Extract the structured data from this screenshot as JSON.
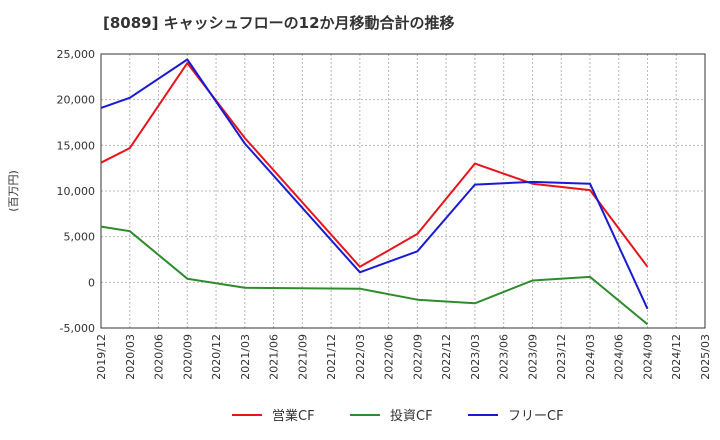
{
  "chart_data": {
    "type": "line",
    "title": "[8089]  キャッシュフローの12か月移動合計の推移",
    "xlabel": "",
    "ylabel": "(百万円)",
    "ylim": [
      -5000,
      25000
    ],
    "yticks": [
      -5000,
      0,
      5000,
      10000,
      15000,
      20000,
      25000
    ],
    "ytick_labels": [
      "-5,000",
      "0",
      "5,000",
      "10,000",
      "15,000",
      "20,000",
      "25,000"
    ],
    "categories": [
      "2019/12",
      "2020/03",
      "2020/06",
      "2020/09",
      "2020/12",
      "2021/03",
      "2021/06",
      "2021/09",
      "2021/12",
      "2022/03",
      "2022/06",
      "2022/09",
      "2022/12",
      "2023/03",
      "2023/06",
      "2023/09",
      "2023/12",
      "2024/03",
      "2024/06",
      "2024/09",
      "2024/12",
      "2025/03"
    ],
    "grid": true,
    "legend_position": "bottom-center",
    "series": [
      {
        "name": "営業CF",
        "color": "#e8141c",
        "values": [
          13100,
          14700,
          null,
          24000,
          null,
          15800,
          null,
          null,
          null,
          1700,
          null,
          5300,
          null,
          13000,
          null,
          10800,
          null,
          10100,
          null,
          1700,
          null,
          null
        ]
      },
      {
        "name": "投資CF",
        "color": "#2e8b2e",
        "values": [
          6100,
          5600,
          null,
          400,
          null,
          -600,
          null,
          null,
          null,
          -700,
          null,
          -1900,
          null,
          -2300,
          null,
          200,
          null,
          600,
          null,
          -4600,
          null,
          null
        ]
      },
      {
        "name": "フリーCF",
        "color": "#1a1ad4",
        "values": [
          19100,
          20200,
          null,
          24400,
          null,
          15200,
          null,
          null,
          null,
          1100,
          null,
          3400,
          null,
          10700,
          null,
          11000,
          null,
          10800,
          null,
          -2900,
          null,
          null
        ]
      }
    ]
  }
}
